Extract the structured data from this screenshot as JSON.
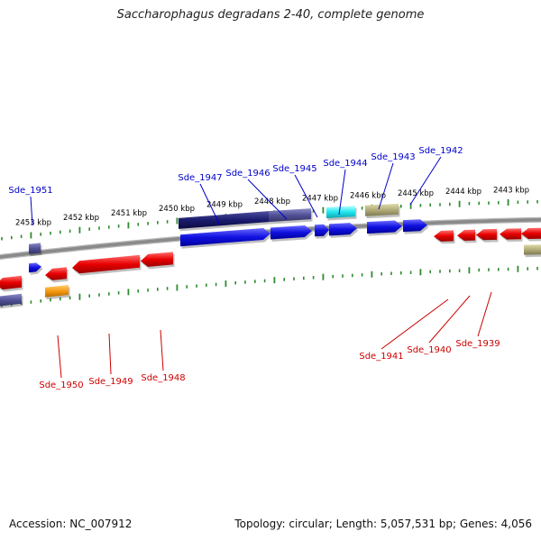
{
  "title": "Saccharophagus degradans 2-40, complete genome",
  "footer": {
    "accession": "Accession: NC_007912",
    "summary": "Topology: circular; Length: 5,057,531 bp; Genes: 4,056"
  },
  "colors": {
    "backbone": "#8a8a8a",
    "tick": "#2e8b2e",
    "top_label": "#0000cc",
    "bottom_label": "#cc0000",
    "scale_text": "#000000"
  },
  "scale_labels": [
    "2453 kbp",
    "2452 kbp",
    "2451 kbp",
    "2450 kbp",
    "2449 kbp",
    "2448 kbp",
    "2447 kbp",
    "2446 kbp",
    "2445 kbp",
    "2444 kbp",
    "2443 kbp"
  ],
  "top_genes": [
    "Sde_1951",
    "Sde_1947",
    "Sde_1946",
    "Sde_1945",
    "Sde_1944",
    "Sde_1943",
    "Sde_1942"
  ],
  "bottom_genes": [
    "Sde_1950",
    "Sde_1949",
    "Sde_1948",
    "Sde_1941",
    "Sde_1940",
    "Sde_1939"
  ]
}
